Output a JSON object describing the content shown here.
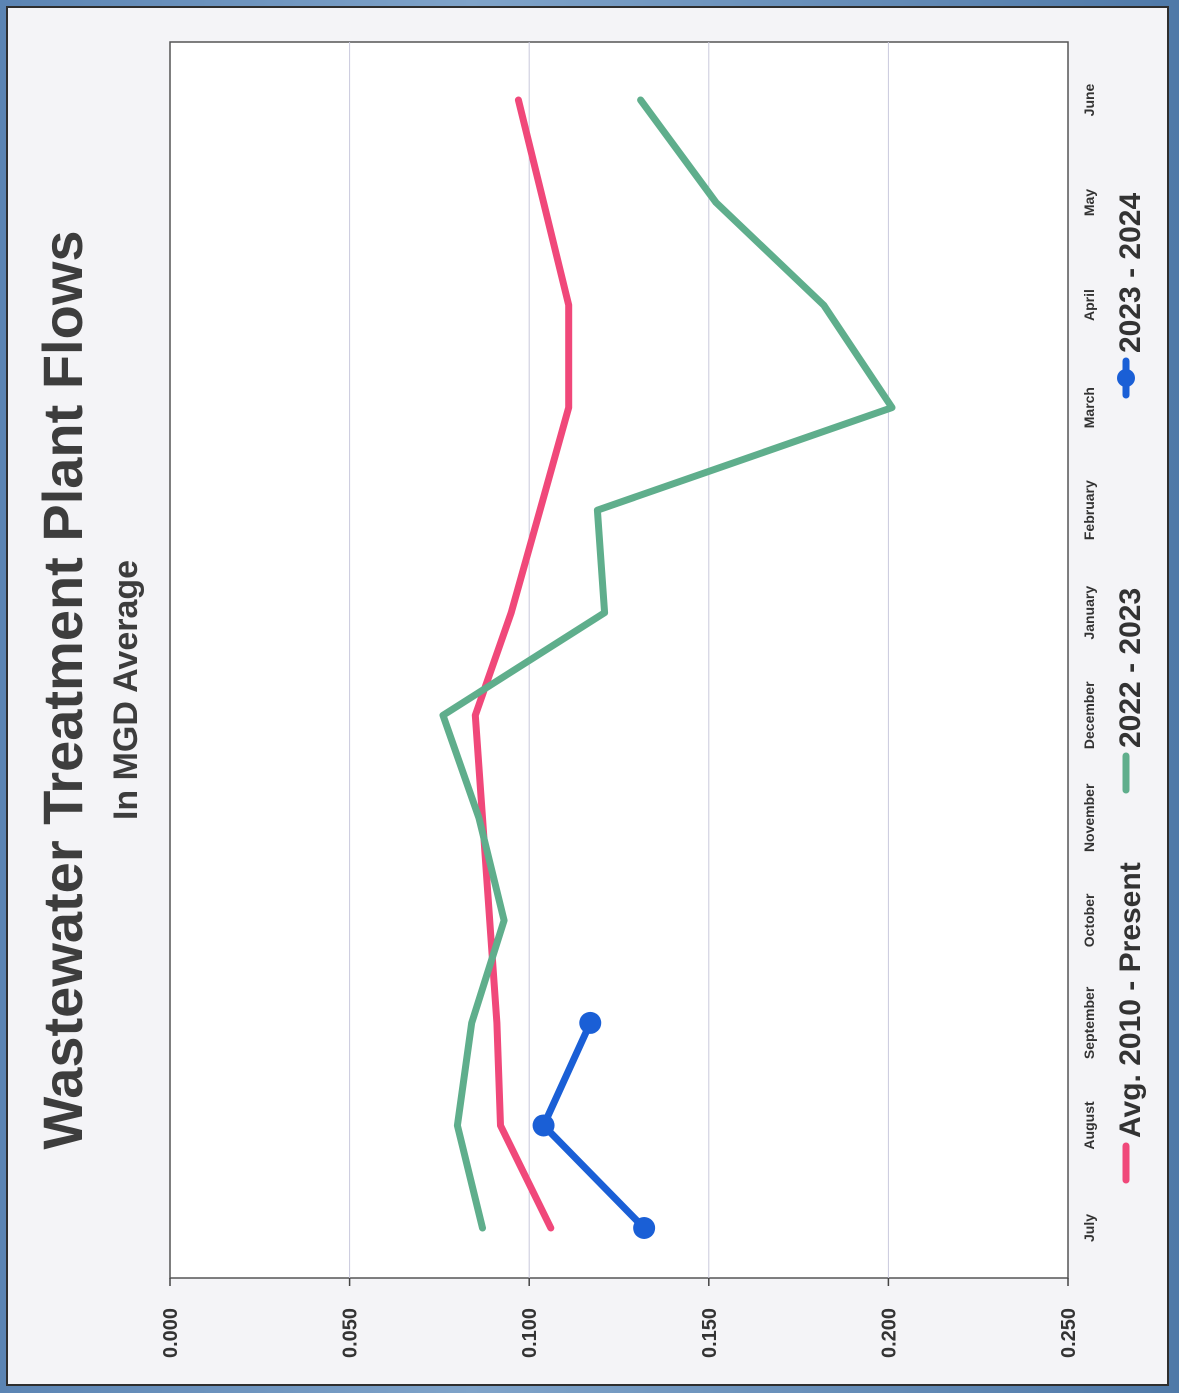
{
  "chart_data": {
    "type": "line",
    "title": "Wastewater Treatment Plant Flows",
    "subtitle": "In MGD Average",
    "categories": [
      "July",
      "August",
      "September",
      "October",
      "November",
      "December",
      "January",
      "February",
      "March",
      "April",
      "May",
      "June"
    ],
    "ylim": [
      0,
      0.25
    ],
    "yticks": [
      "0.000",
      "0.050",
      "0.100",
      "0.150",
      "0.200",
      "0.250"
    ],
    "grid": true,
    "legend_position": "bottom",
    "orientation": "rotated 90° counter-clockwise",
    "series": [
      {
        "name": "Avg. 2010 - Present",
        "color": "#f0487a",
        "marker": "none",
        "values": [
          0.106,
          0.092,
          0.091,
          0.089,
          0.087,
          0.085,
          0.095,
          0.103,
          0.111,
          0.111,
          0.104,
          0.097
        ]
      },
      {
        "name": "2022 - 2023",
        "color": "#5fae8c",
        "marker": "none",
        "values": [
          0.087,
          0.08,
          0.084,
          0.093,
          0.086,
          0.076,
          0.121,
          0.119,
          0.201,
          0.182,
          0.152,
          0.131
        ]
      },
      {
        "name": "2023 - 2024",
        "color": "#1a5fd6",
        "marker": "circle",
        "values": [
          0.132,
          0.104,
          0.117,
          null,
          null,
          null,
          null,
          null,
          null,
          null,
          null,
          null
        ]
      }
    ]
  }
}
